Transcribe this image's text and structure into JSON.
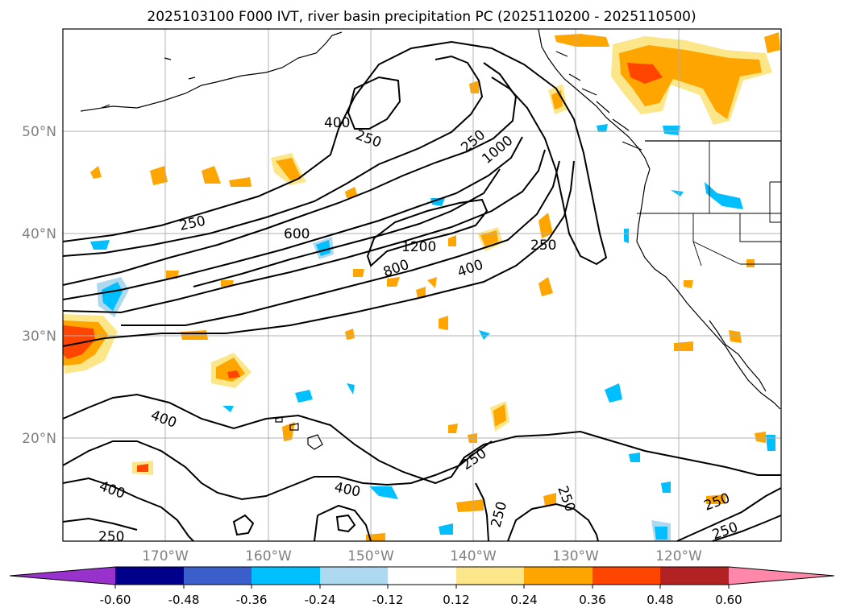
{
  "title": "2025103100 F000 IVT, river basin precipitation PC (2025110200 - 2025110500)",
  "axes": {
    "lat_labels": [
      "50°N",
      "40°N",
      "30°N",
      "20°N"
    ],
    "lon_labels": [
      "170°W",
      "160°W",
      "150°W",
      "140°W",
      "130°W",
      "120°W"
    ],
    "lat_values": [
      50,
      40,
      30,
      20
    ],
    "lon_values": [
      -170,
      -160,
      -150,
      -140,
      -130,
      -120
    ],
    "lat_range": [
      10,
      60
    ],
    "lon_range": [
      -180,
      -110
    ],
    "label_color": "#808080",
    "grid": true
  },
  "contour_labels": [
    "400",
    "250",
    "250",
    "1000",
    "250",
    "600",
    "1200",
    "250",
    "800",
    "400",
    "400",
    "400",
    "250",
    "400",
    "250",
    "250",
    "250",
    "250",
    "250"
  ],
  "colorbar": {
    "ticks": [
      "-0.60",
      "-0.48",
      "-0.36",
      "-0.24",
      "-0.12",
      "0.12",
      "0.24",
      "0.36",
      "0.48",
      "0.60"
    ],
    "colors": [
      "#9932cc",
      "#00008b",
      "#3a5fcd",
      "#00bfff",
      "#add8f0",
      "#ffffff",
      "#fbe68a",
      "#ffa500",
      "#ff4500",
      "#b22222",
      "#ff88aa"
    ]
  }
}
